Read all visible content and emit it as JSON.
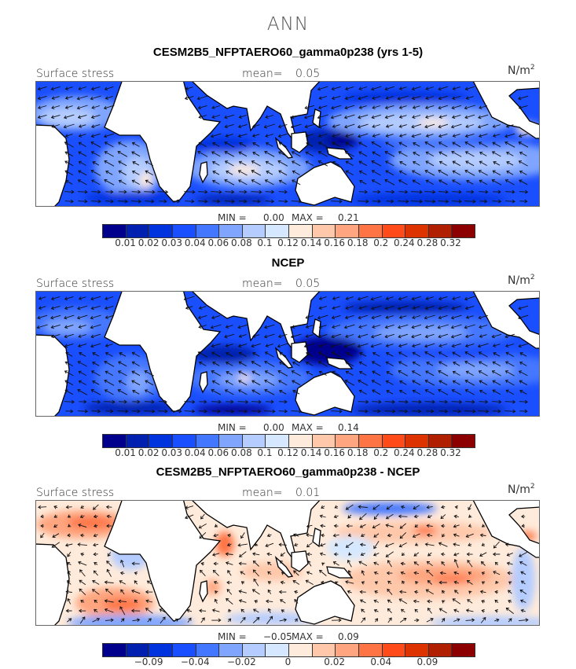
{
  "header": {
    "title": "ANN"
  },
  "colors": [
    "#00008C",
    "#0020B0",
    "#0033DD",
    "#1A4FFF",
    "#4477FF",
    "#7FA5FF",
    "#B4CCFF",
    "#D6E8FF",
    "#FFEBDB",
    "#FFC8AA",
    "#FFA57F",
    "#FF7444",
    "#FF4A1A",
    "#DD3300",
    "#B02000",
    "#8C0000"
  ],
  "panels": [
    {
      "title": "CESM2B5_NFPTAERO60_gamma0p238 (yrs 1-5)",
      "variable": "Surface stress",
      "mean_label": "mean=",
      "mean_value": "0.05",
      "units_base": "N/m",
      "units_exp": "2",
      "min_label": "MIN =",
      "min_value": "0.00",
      "max_label": "MAX =",
      "max_value": "0.21",
      "colorbar_ticks": [
        "0.01",
        "0.02",
        "0.03",
        "0.04",
        "0.06",
        "0.08",
        "0.1",
        "0.12",
        "0.14",
        "0.16",
        "0.18",
        "0.2",
        "0.24",
        "0.28",
        "0.32"
      ]
    },
    {
      "title": "NCEP",
      "variable": "Surface stress",
      "mean_label": "mean=",
      "mean_value": "0.05",
      "units_base": "N/m",
      "units_exp": "2",
      "min_label": "MIN =",
      "min_value": "0.00",
      "max_label": "MAX =",
      "max_value": "0.14",
      "colorbar_ticks": [
        "0.01",
        "0.02",
        "0.03",
        "0.04",
        "0.06",
        "0.08",
        "0.1",
        "0.12",
        "0.14",
        "0.16",
        "0.18",
        "0.2",
        "0.24",
        "0.28",
        "0.32"
      ]
    },
    {
      "title": "CESM2B5_NFPTAERO60_gamma0p238 - NCEP",
      "variable": "Surface stress",
      "mean_label": "mean=",
      "mean_value": "0.01",
      "units_base": "N/m",
      "units_exp": "2",
      "min_label": "MIN =",
      "min_value": "−0.05",
      "max_label": "MAX =",
      "max_value": "0.09",
      "colorbar_ticks": [
        "",
        "−0.09",
        "",
        "−0.04",
        "",
        "−0.02",
        "",
        "0",
        "",
        "0.02",
        "",
        "0.04",
        "",
        "0.09",
        ""
      ]
    }
  ]
}
